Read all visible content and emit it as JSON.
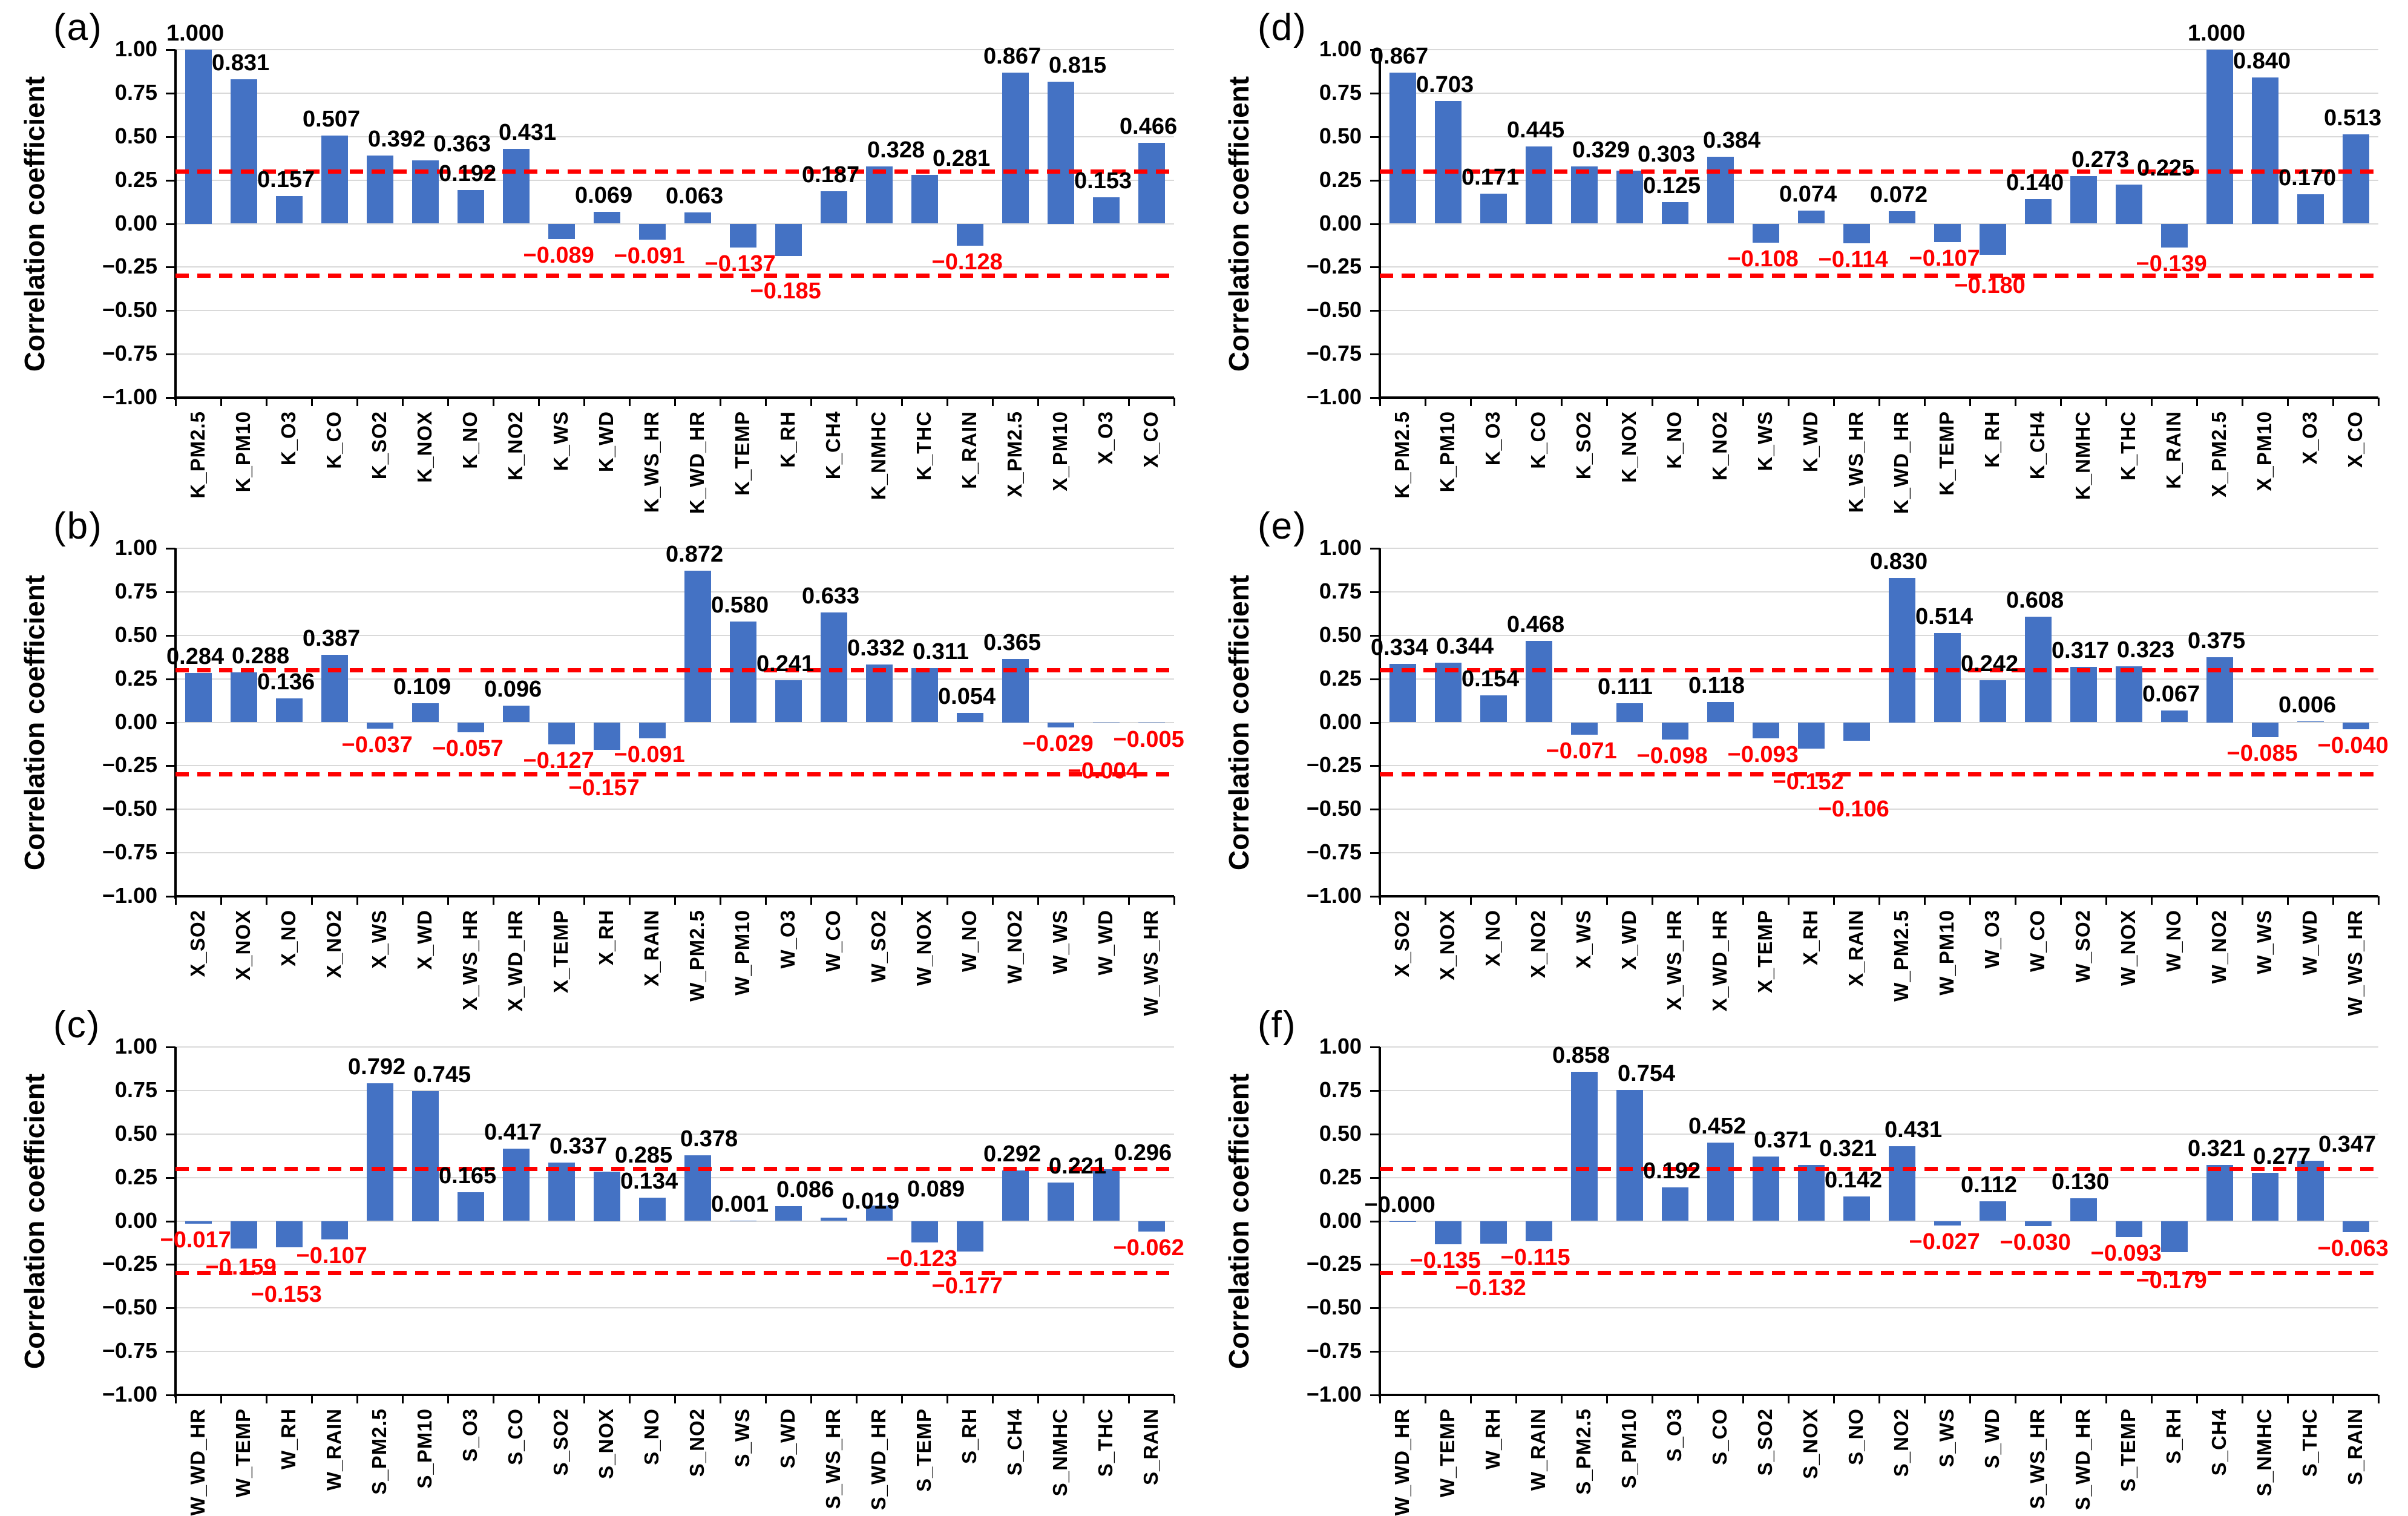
{
  "figure": {
    "y_axis_title": "Correlation coefficient",
    "y_ticks": [
      "1.00",
      "0.75",
      "0.50",
      "0.25",
      "0.00",
      "-0.25",
      "-0.50",
      "-0.75",
      "-1.00"
    ],
    "ylim": [
      -1,
      1
    ],
    "grid": true,
    "legend": false,
    "colors": {
      "bar": "#4472c4",
      "threshold_line": "#ff0000",
      "positive_label": "#000000",
      "negative_label": "#ff0000",
      "gridline": "#d9d9d9",
      "axis": "#000000"
    },
    "thresholds": [
      0.3,
      -0.3
    ]
  },
  "chart_data": [
    {
      "panel": "(a)",
      "type": "bar",
      "ylabel": "Correlation coefficient",
      "ylim": [
        -1,
        1
      ],
      "thresholds": [
        0.3,
        -0.3
      ],
      "categories": [
        "K_PM2.5",
        "K_PM10",
        "K_O3",
        "K_CO",
        "K_SO2",
        "K_NOX",
        "K_NO",
        "K_NO2",
        "K_WS",
        "K_WD",
        "K_WS_HR",
        "K_WD_HR",
        "K_TEMP",
        "K_RH",
        "K_CH4",
        "K_NMHC",
        "K_THC",
        "K_RAIN",
        "X_PM2.5",
        "X_PM10",
        "X_O3",
        "X_CO"
      ],
      "values": [
        "1.000",
        "0.831",
        "0.157",
        "0.507",
        "0.392",
        "0.363",
        "0.192",
        "0.431",
        "-0.089",
        "0.069",
        "-0.091",
        "0.063",
        "-0.137",
        "-0.185",
        "0.187",
        "0.328",
        "0.281",
        "-0.128",
        "0.867",
        "0.815",
        "0.153",
        "0.466"
      ]
    },
    {
      "panel": "(b)",
      "type": "bar",
      "ylabel": "Correlation coefficient",
      "ylim": [
        -1,
        1
      ],
      "thresholds": [
        0.3,
        -0.3
      ],
      "categories": [
        "X_SO2",
        "X_NOX",
        "X_NO",
        "X_NO2",
        "X_WS",
        "X_WD",
        "X_WS_HR",
        "X_WD_HR",
        "X_TEMP",
        "X_RH",
        "X_RAIN",
        "W_PM2.5",
        "W_PM10",
        "W_O3",
        "W_CO",
        "W_SO2",
        "W_NOX",
        "W_NO",
        "W_NO2",
        "W_WS",
        "W_WD",
        "W_WS_HR"
      ],
      "values": [
        "0.284",
        "0.288",
        "0.136",
        "0.387",
        "-0.037",
        "0.109",
        "-0.057",
        "0.096",
        "-0.127",
        "-0.157",
        "-0.091",
        "0.872",
        "0.580",
        "0.241",
        "0.633",
        "0.332",
        "0.311",
        "0.054",
        "0.365",
        "-0.029",
        "-0.004",
        "-0.005"
      ]
    },
    {
      "panel": "(c)",
      "type": "bar",
      "ylabel": "Correlation coefficient",
      "ylim": [
        -1,
        1
      ],
      "thresholds": [
        0.3,
        -0.3
      ],
      "categories": [
        "W_WD_HR",
        "W_TEMP",
        "W_RH",
        "W_RAIN",
        "S_PM2.5",
        "S_PM10",
        "S_O3",
        "S_CO",
        "S_SO2",
        "S_NOX",
        "S_NO",
        "S_NO2",
        "S_WS",
        "S_WD",
        "S_WS_HR",
        "S_WD_HR",
        "S_TEMP",
        "S_RH",
        "S_CH4",
        "S_NMHC",
        "S_THC",
        "S_RAIN"
      ],
      "values": [
        "-0.017",
        "-0.159",
        "-0.153",
        "-0.107",
        "0.792",
        "0.745",
        "0.165",
        "0.417",
        "0.337",
        "0.285",
        "0.134",
        "0.378",
        "0.001",
        "0.086",
        "0.019",
        "0.089",
        "-0.123",
        "-0.177",
        "0.292",
        "0.221",
        "0.296",
        "-0.062"
      ]
    },
    {
      "panel": "(d)",
      "type": "bar",
      "ylabel": "Correlation coefficient",
      "ylim": [
        -1,
        1
      ],
      "thresholds": [
        0.3,
        -0.3
      ],
      "categories": [
        "K_PM2.5",
        "K_PM10",
        "K_O3",
        "K_CO",
        "K_SO2",
        "K_NOX",
        "K_NO",
        "K_NO2",
        "K_WS",
        "K_WD",
        "K_WS_HR",
        "K_WD_HR",
        "K_TEMP",
        "K_RH",
        "K_CH4",
        "K_NMHC",
        "K_THC",
        "K_RAIN",
        "X_PM2.5",
        "X_PM10",
        "X_O3",
        "X_CO"
      ],
      "values": [
        "0.867",
        "0.703",
        "0.171",
        "0.445",
        "0.329",
        "0.303",
        "0.125",
        "0.384",
        "-0.108",
        "0.074",
        "-0.114",
        "0.072",
        "-0.107",
        "-0.180",
        "0.140",
        "0.273",
        "0.225",
        "-0.139",
        "1.000",
        "0.840",
        "0.170",
        "0.513"
      ]
    },
    {
      "panel": "(e)",
      "type": "bar",
      "ylabel": "Correlation coefficient",
      "ylim": [
        -1,
        1
      ],
      "thresholds": [
        0.3,
        -0.3
      ],
      "categories": [
        "X_SO2",
        "X_NOX",
        "X_NO",
        "X_NO2",
        "X_WS",
        "X_WD",
        "X_WS_HR",
        "X_WD_HR",
        "X_TEMP",
        "X_RH",
        "X_RAIN",
        "W_PM2.5",
        "W_PM10",
        "W_O3",
        "W_CO",
        "W_SO2",
        "W_NOX",
        "W_NO",
        "W_NO2",
        "W_WS",
        "W_WD",
        "W_WS_HR"
      ],
      "values": [
        "0.334",
        "0.344",
        "0.154",
        "0.468",
        "-0.071",
        "0.111",
        "-0.098",
        "0.118",
        "-0.093",
        "-0.152",
        "-0.106",
        "0.830",
        "0.514",
        "0.242",
        "0.608",
        "0.317",
        "0.323",
        "0.067",
        "0.375",
        "-0.085",
        "0.006",
        "-0.040"
      ]
    },
    {
      "panel": "(f)",
      "type": "bar",
      "ylabel": "Correlation coefficient",
      "ylim": [
        -1,
        1
      ],
      "thresholds": [
        0.3,
        -0.3
      ],
      "categories": [
        "W_WD_HR",
        "W_TEMP",
        "W_RH",
        "W_RAIN",
        "S_PM2.5",
        "S_PM10",
        "S_O3",
        "S_CO",
        "S_SO2",
        "S_NOX",
        "S_NO",
        "S_NO2",
        "S_WS",
        "S_WD",
        "S_WS_HR",
        "S_WD_HR",
        "S_TEMP",
        "S_RH",
        "S_CH4",
        "S_NMHC",
        "S_THC",
        "S_RAIN"
      ],
      "values": [
        "-0.000",
        "-0.135",
        "-0.132",
        "-0.115",
        "0.858",
        "0.754",
        "0.192",
        "0.452",
        "0.371",
        "0.321",
        "0.142",
        "0.431",
        "-0.027",
        "0.112",
        "-0.030",
        "0.130",
        "-0.093",
        "-0.179",
        "0.321",
        "0.277",
        "0.347",
        "-0.063"
      ]
    }
  ]
}
